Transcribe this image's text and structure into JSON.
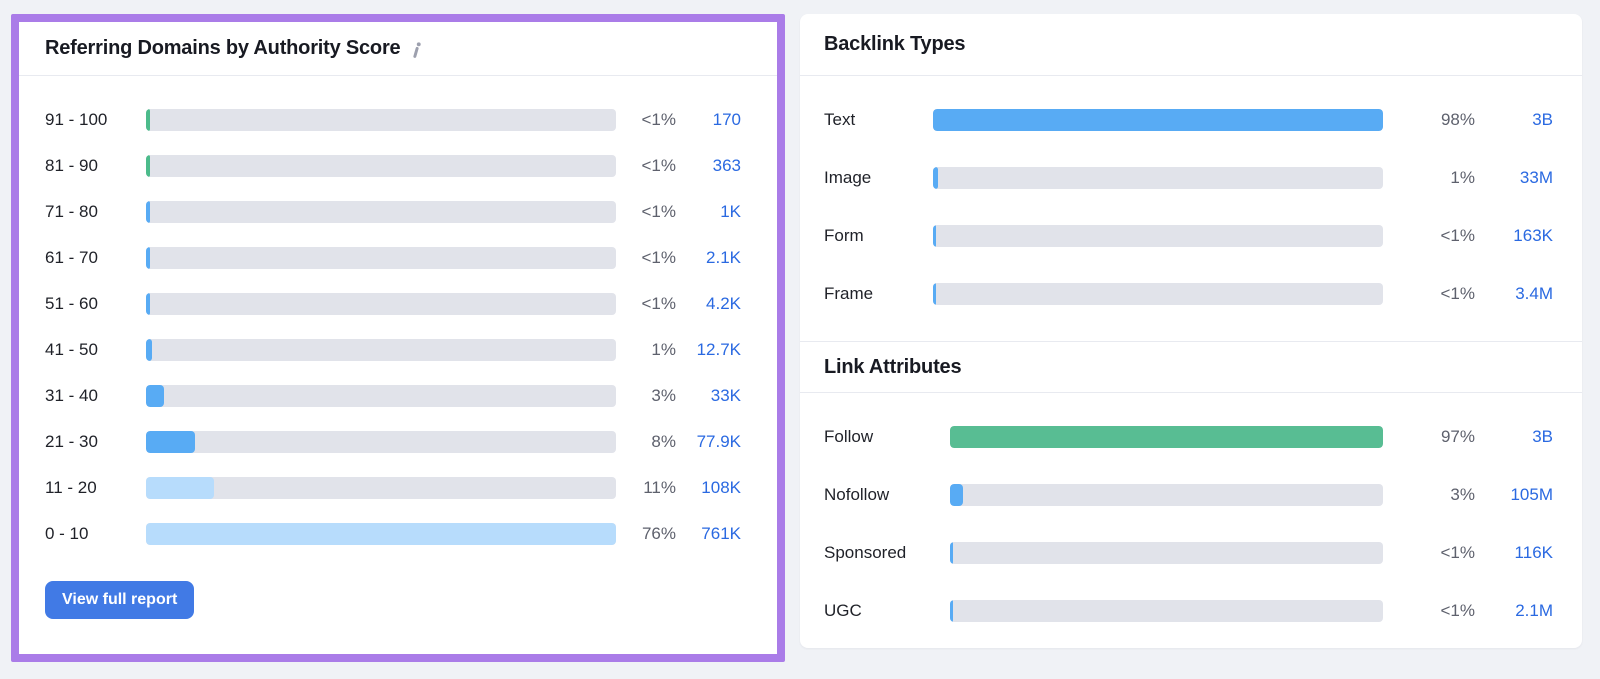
{
  "colors": {
    "blue": "#58ABF4",
    "lightblue": "#B7DCFC",
    "green": "#4CBB8B",
    "green_bar": "#58BD93",
    "track": "#E1E3EA",
    "link_blue": "#2A69E1",
    "button_blue": "#417AE5",
    "highlight_purple": "#AA7CE8",
    "page_background": "#F0F2F6"
  },
  "referring_domains": {
    "title": "Referring Domains by Authority Score",
    "button_label": "View full report",
    "rows": [
      {
        "label": "91 - 100",
        "percent": "<1%",
        "value": "170",
        "fill_pct": 0.8,
        "color": "green"
      },
      {
        "label": "81 - 90",
        "percent": "<1%",
        "value": "363",
        "fill_pct": 0.8,
        "color": "green"
      },
      {
        "label": "71 - 80",
        "percent": "<1%",
        "value": "1K",
        "fill_pct": 0.8,
        "color": "blue"
      },
      {
        "label": "61 - 70",
        "percent": "<1%",
        "value": "2.1K",
        "fill_pct": 0.8,
        "color": "blue"
      },
      {
        "label": "51 - 60",
        "percent": "<1%",
        "value": "4.2K",
        "fill_pct": 0.8,
        "color": "blue"
      },
      {
        "label": "41 - 50",
        "percent": "1%",
        "value": "12.7K",
        "fill_pct": 1.3,
        "color": "blue"
      },
      {
        "label": "31 - 40",
        "percent": "3%",
        "value": "33K",
        "fill_pct": 3.9,
        "color": "blue"
      },
      {
        "label": "21 - 30",
        "percent": "8%",
        "value": "77.9K",
        "fill_pct": 10.5,
        "color": "blue"
      },
      {
        "label": "11 - 20",
        "percent": "11%",
        "value": "108K",
        "fill_pct": 14.5,
        "color": "lightblue"
      },
      {
        "label": "0 - 10",
        "percent": "76%",
        "value": "761K",
        "fill_pct": 100,
        "color": "lightblue"
      }
    ]
  },
  "backlink_types": {
    "title": "Backlink Types",
    "rows": [
      {
        "label": "Text",
        "percent": "98%",
        "value": "3B",
        "fill_pct": 100,
        "color": "blue"
      },
      {
        "label": "Image",
        "percent": "1%",
        "value": "33M",
        "fill_pct": 1.0,
        "color": "blue"
      },
      {
        "label": "Form",
        "percent": "<1%",
        "value": "163K",
        "fill_pct": 0.6,
        "color": "blue"
      },
      {
        "label": "Frame",
        "percent": "<1%",
        "value": "3.4M",
        "fill_pct": 0.6,
        "color": "blue"
      }
    ]
  },
  "link_attributes": {
    "title": "Link Attributes",
    "rows": [
      {
        "label": "Follow",
        "percent": "97%",
        "value": "3B",
        "fill_pct": 100,
        "color": "green_bar"
      },
      {
        "label": "Nofollow",
        "percent": "3%",
        "value": "105M",
        "fill_pct": 3.1,
        "color": "blue"
      },
      {
        "label": "Sponsored",
        "percent": "<1%",
        "value": "116K",
        "fill_pct": 0.6,
        "color": "blue"
      },
      {
        "label": "UGC",
        "percent": "<1%",
        "value": "2.1M",
        "fill_pct": 0.6,
        "color": "blue"
      }
    ]
  },
  "chart_data": [
    {
      "type": "bar",
      "title": "Referring Domains by Authority Score",
      "orientation": "horizontal",
      "categories": [
        "91 - 100",
        "81 - 90",
        "71 - 80",
        "61 - 70",
        "51 - 60",
        "41 - 50",
        "31 - 40",
        "21 - 30",
        "11 - 20",
        "0 - 10"
      ],
      "percent_labels": [
        "<1%",
        "<1%",
        "<1%",
        "<1%",
        "<1%",
        "1%",
        "3%",
        "8%",
        "11%",
        "76%"
      ],
      "percent_values": [
        0.5,
        0.5,
        0.5,
        0.5,
        0.5,
        1,
        3,
        8,
        11,
        76
      ],
      "count_labels": [
        "170",
        "363",
        "1K",
        "2.1K",
        "4.2K",
        "12.7K",
        "33K",
        "77.9K",
        "108K",
        "761K"
      ],
      "bars_normalized_to_max": true,
      "xlabel": "",
      "ylabel": ""
    },
    {
      "type": "bar",
      "title": "Backlink Types",
      "orientation": "horizontal",
      "categories": [
        "Text",
        "Image",
        "Form",
        "Frame"
      ],
      "percent_labels": [
        "98%",
        "1%",
        "<1%",
        "<1%"
      ],
      "percent_values": [
        98,
        1,
        0.5,
        0.5
      ],
      "count_labels": [
        "3B",
        "33M",
        "163K",
        "3.4M"
      ],
      "bars_normalized_to_max": true,
      "xlabel": "",
      "ylabel": ""
    },
    {
      "type": "bar",
      "title": "Link Attributes",
      "orientation": "horizontal",
      "categories": [
        "Follow",
        "Nofollow",
        "Sponsored",
        "UGC"
      ],
      "percent_labels": [
        "97%",
        "3%",
        "<1%",
        "<1%"
      ],
      "percent_values": [
        97,
        3,
        0.5,
        0.5
      ],
      "count_labels": [
        "3B",
        "105M",
        "116K",
        "2.1M"
      ],
      "bars_normalized_to_max": true,
      "xlabel": "",
      "ylabel": ""
    }
  ]
}
